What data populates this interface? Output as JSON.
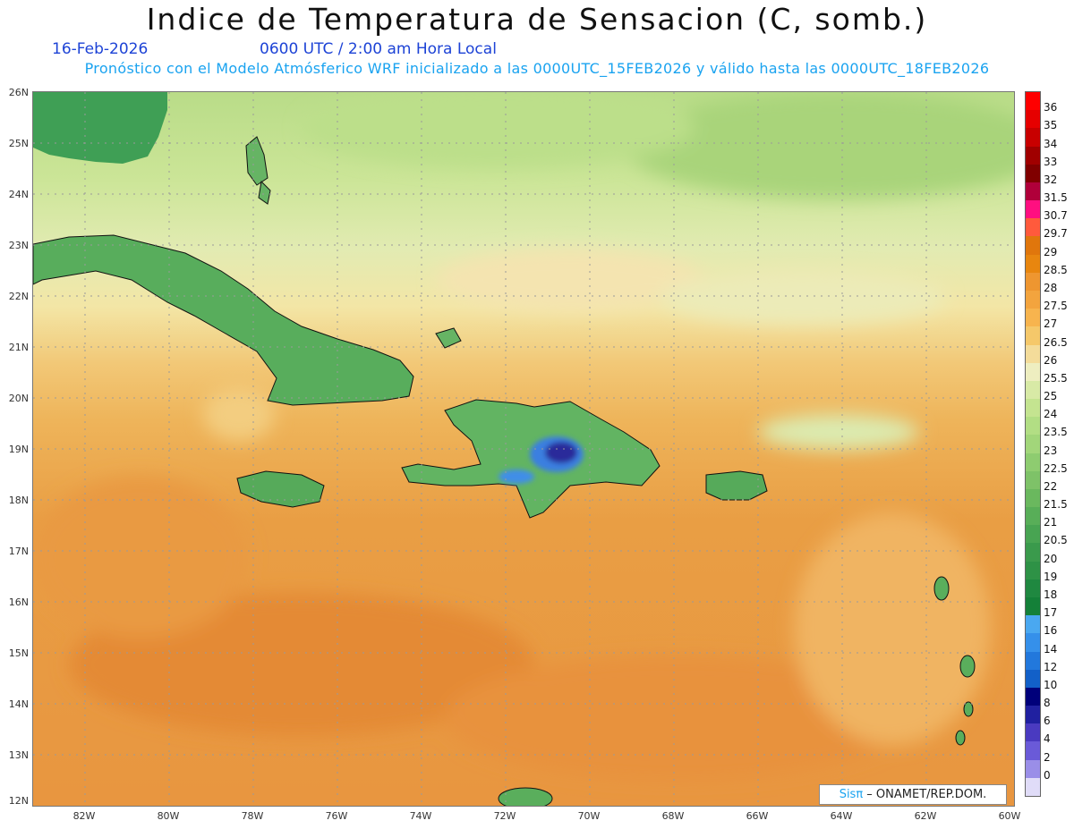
{
  "header": {
    "title": "Indice de Temperatura de Sensacion (C, somb.)",
    "date": "16-Feb-2026",
    "time": "0600 UTC / 2:00 am Hora Local",
    "model_info": "Pronóstico con el Modelo Atmósferico WRF inicializado a las 0000UTC_15FEB2026 y válido hasta las  0000UTC_18FEB2026"
  },
  "axes": {
    "lat_labels": [
      "26N",
      "25N",
      "24N",
      "23N",
      "22N",
      "21N",
      "20N",
      "19N",
      "18N",
      "17N",
      "16N",
      "15N",
      "14N",
      "13N",
      "12N"
    ],
    "lon_labels": [
      "82W",
      "80W",
      "78W",
      "76W",
      "74W",
      "72W",
      "70W",
      "68W",
      "66W",
      "64W",
      "62W",
      "60W"
    ]
  },
  "colorbar": {
    "labels": [
      "36",
      "35",
      "34",
      "33",
      "32",
      "31.5",
      "30.7",
      "29.7",
      "29",
      "28.5",
      "28",
      "27.5",
      "27",
      "26.5",
      "26",
      "25.5",
      "25",
      "24",
      "23.5",
      "23",
      "22.5",
      "22",
      "21.5",
      "21",
      "20.5",
      "20",
      "19",
      "18",
      "17",
      "16",
      "14",
      "12",
      "10",
      "8",
      "6",
      "4",
      "2",
      "0"
    ],
    "colors": [
      "#ff0000",
      "#e60000",
      "#c80000",
      "#a00000",
      "#800000",
      "#b0003a",
      "#ff0f80",
      "#ff5a3c",
      "#e0760c",
      "#e8860f",
      "#ee9630",
      "#f3a43e",
      "#f7b44e",
      "#f5c86a",
      "#f4dc9a",
      "#eeeec0",
      "#d8eaa6",
      "#c4e490",
      "#b2de84",
      "#a2d67a",
      "#8ecc70",
      "#7ec268",
      "#6ab85e",
      "#58ae58",
      "#48a452",
      "#3a9a4c",
      "#2e9246",
      "#1f8840",
      "#148038",
      "#4aa8f0",
      "#3590ea",
      "#2278dc",
      "#1260c8",
      "#00007a",
      "#2020a0",
      "#4a3ac0",
      "#6a5ad8",
      "#9a8ee8"
    ],
    "bottom_color": "#e0dcf8"
  },
  "credit": {
    "brand_prefix": "Sis",
    "brand_pi": "π",
    "text": " – ONAMET/REP.DOM."
  }
}
